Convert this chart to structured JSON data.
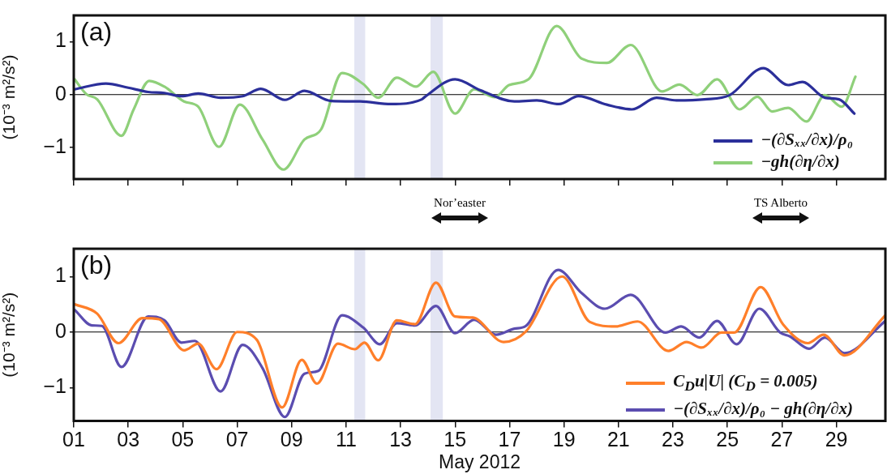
{
  "chart_data": [
    {
      "type": "line",
      "ylabel": "(10⁻³ m²/s²)",
      "xlim": [
        1,
        30.8
      ],
      "xticks": [
        {
          "value": 1,
          "label": null
        },
        {
          "value": 3,
          "label": null
        },
        {
          "value": 5,
          "label": null
        },
        {
          "value": 7,
          "label": null
        },
        {
          "value": 9,
          "label": null
        },
        {
          "value": 11,
          "label": null
        },
        {
          "value": 13,
          "label": null
        },
        {
          "value": 15,
          "label": null
        },
        {
          "value": 17,
          "label": null
        },
        {
          "value": 19,
          "label": null
        },
        {
          "value": 21,
          "label": null
        },
        {
          "value": 23,
          "label": null
        },
        {
          "value": 25,
          "label": null
        },
        {
          "value": 27,
          "label": null
        },
        {
          "value": 29,
          "label": null
        }
      ],
      "ylim": [
        -1.6,
        1.5
      ],
      "yticks": [
        {
          "value": -1,
          "label": "−1"
        },
        {
          "value": 0,
          "label": "0"
        },
        {
          "value": 1,
          "label": "1"
        }
      ],
      "tick_labels": "y",
      "grid": false,
      "legend": "bottom right",
      "series": [
        {
          "name": "−(∂Sₓₓ/∂x)/ρ₀",
          "color": "#2b2f9a",
          "x": [
            1.03,
            2.18,
            3.0,
            3.73,
            4.33,
            4.95,
            5.57,
            6.39,
            7.2,
            7.87,
            8.75,
            9.47,
            10.44,
            11.52,
            12.65,
            13.78,
            13.9,
            15.0,
            15.94,
            17.18,
            18.0,
            18.82,
            19.53,
            20.57,
            21.49,
            22.4,
            23.13,
            24.16,
            25.08,
            26.32,
            27.23,
            27.75,
            28.58,
            29.1,
            29.66
          ],
          "values": [
            0.1,
            0.21,
            0.13,
            0.05,
            0.03,
            -0.03,
            0.02,
            -0.06,
            -0.03,
            0.11,
            -0.1,
            0.07,
            -0.12,
            -0.13,
            -0.18,
            -0.09,
            -0.04,
            0.29,
            0.08,
            -0.13,
            -0.11,
            -0.18,
            -0.03,
            -0.19,
            -0.28,
            -0.06,
            -0.11,
            -0.09,
            -0.01,
            0.5,
            0.18,
            0.24,
            -0.06,
            -0.09,
            -0.36
          ]
        },
        {
          "name": "−gh(∂η/∂x)",
          "color": "#8fd07a",
          "x": [
            1.03,
            1.46,
            1.86,
            2.75,
            3.2,
            3.77,
            4.33,
            5.05,
            5.57,
            6.33,
            7.1,
            7.93,
            8.7,
            9.47,
            10.08,
            10.85,
            11.63,
            12.18,
            12.86,
            13.57,
            14.2,
            15.0,
            15.7,
            16.46,
            16.98,
            17.7,
            18.73,
            19.65,
            20.57,
            21.45,
            22.6,
            23.24,
            23.9,
            24.62,
            25.45,
            26.1,
            26.64,
            27.23,
            27.9,
            28.58,
            29.2,
            29.7
          ],
          "values": [
            0.29,
            0.01,
            -0.09,
            -0.78,
            -0.28,
            0.26,
            0.15,
            -0.13,
            -0.23,
            -0.99,
            -0.19,
            -0.85,
            -1.42,
            -0.85,
            -0.66,
            0.41,
            0.2,
            -0.06,
            0.32,
            0.15,
            0.43,
            -0.36,
            0.1,
            -0.05,
            0.18,
            0.29,
            1.3,
            0.68,
            0.6,
            0.94,
            0.06,
            0.19,
            -0.01,
            0.29,
            -0.28,
            -0.04,
            -0.32,
            -0.25,
            -0.51,
            -0.01,
            -0.23,
            0.34
          ]
        }
      ],
      "ref_lines": [
        {
          "axis": "y",
          "value": 0,
          "color": "#000000"
        }
      ],
      "bands": [
        {
          "axis": "x",
          "from": 11.3,
          "to": 11.7,
          "color": "#e3e5f3"
        },
        {
          "axis": "x",
          "from": 14.1,
          "to": 14.55,
          "color": "#e3e5f3"
        }
      ],
      "annotations": [
        "(a)",
        "Nor’easter",
        "TS Alberto"
      ]
    },
    {
      "type": "line",
      "xlabel": "May 2012",
      "ylabel": "(10⁻³ m²/s²)",
      "xlim": [
        1,
        30.8
      ],
      "xticks": [
        {
          "value": 1,
          "label": "01"
        },
        {
          "value": 3,
          "label": "03"
        },
        {
          "value": 5,
          "label": "05"
        },
        {
          "value": 7,
          "label": "07"
        },
        {
          "value": 9,
          "label": "09"
        },
        {
          "value": 11,
          "label": "11"
        },
        {
          "value": 13,
          "label": "13"
        },
        {
          "value": 15,
          "label": "15"
        },
        {
          "value": 17,
          "label": "17"
        },
        {
          "value": 19,
          "label": "19"
        },
        {
          "value": 21,
          "label": "21"
        },
        {
          "value": 23,
          "label": "23"
        },
        {
          "value": 25,
          "label": "25"
        },
        {
          "value": 27,
          "label": "27"
        },
        {
          "value": 29,
          "label": "29"
        }
      ],
      "ylim": [
        -1.6,
        1.5
      ],
      "yticks": [
        {
          "value": -1,
          "label": "−1"
        },
        {
          "value": 0,
          "label": "0"
        },
        {
          "value": 1,
          "label": "1"
        }
      ],
      "grid": false,
      "legend": "bottom right",
      "series": [
        {
          "name": "C$_{D}$u|U| (C$_{D}$ = 0.005)",
          "color": "#ff7f2a",
          "x": [
            1.03,
            1.86,
            2.64,
            3.52,
            4.13,
            5.05,
            5.57,
            6.24,
            7.0,
            7.72,
            8.65,
            9.37,
            9.93,
            10.7,
            11.32,
            11.67,
            12.18,
            12.86,
            13.53,
            14.3,
            15.0,
            15.65,
            16.78,
            17.6,
            18.93,
            19.95,
            20.9,
            21.7,
            22.83,
            23.5,
            24.06,
            24.78,
            25.25,
            26.22,
            27.04,
            27.96,
            28.53,
            29.3,
            30.8
          ],
          "values": [
            0.5,
            0.33,
            -0.2,
            0.25,
            0.23,
            -0.33,
            -0.21,
            -0.67,
            0,
            -0.14,
            -1.36,
            -0.5,
            -0.93,
            -0.21,
            -0.31,
            -0.19,
            -0.51,
            0.21,
            0.14,
            0.89,
            0.28,
            0.26,
            -0.18,
            0.01,
            1.0,
            0.18,
            0.1,
            0.19,
            -0.34,
            -0.18,
            -0.28,
            -0.01,
            -0.01,
            0.81,
            0.14,
            -0.2,
            -0.05,
            -0.42,
            0.3
          ]
        },
        {
          "name": "−(∂Sₓₓ/∂x)/ρ₀ − gh(∂η/∂x)",
          "color": "#5b4db0",
          "x": [
            1.03,
            1.66,
            2.03,
            2.75,
            3.73,
            4.33,
            4.95,
            5.45,
            6.39,
            7.2,
            7.93,
            8.75,
            9.47,
            9.98,
            10.85,
            11.63,
            12.24,
            12.86,
            13.53,
            14.3,
            15.0,
            15.7,
            16.5,
            17.18,
            17.6,
            18.78,
            19.65,
            20.5,
            21.45,
            22.73,
            23.3,
            23.96,
            24.62,
            25.34,
            26.17,
            26.94,
            27.3,
            28.0,
            28.58,
            29.3,
            30.8
          ],
          "values": [
            0.4,
            0.12,
            0.11,
            -0.63,
            0.28,
            0.21,
            -0.19,
            -0.16,
            -1.07,
            -0.23,
            -0.65,
            -1.53,
            -0.75,
            -0.7,
            0.3,
            0.08,
            -0.22,
            0.16,
            0.12,
            0.47,
            -0.02,
            0.22,
            -0.05,
            0.06,
            0.11,
            1.12,
            0.7,
            0.42,
            0.67,
            -0.01,
            0.1,
            -0.1,
            0.2,
            -0.22,
            0.42,
            -0.01,
            -0.08,
            -0.3,
            -0.1,
            -0.38,
            0.2
          ]
        }
      ],
      "ref_lines": [
        {
          "axis": "y",
          "value": 0,
          "color": "#000000"
        }
      ],
      "bands": [
        {
          "axis": "x",
          "from": 11.3,
          "to": 11.7,
          "color": "#e3e5f3"
        },
        {
          "axis": "x",
          "from": 14.1,
          "to": 14.55,
          "color": "#e3e5f3"
        }
      ],
      "annotations": [
        "(b)"
      ]
    }
  ]
}
